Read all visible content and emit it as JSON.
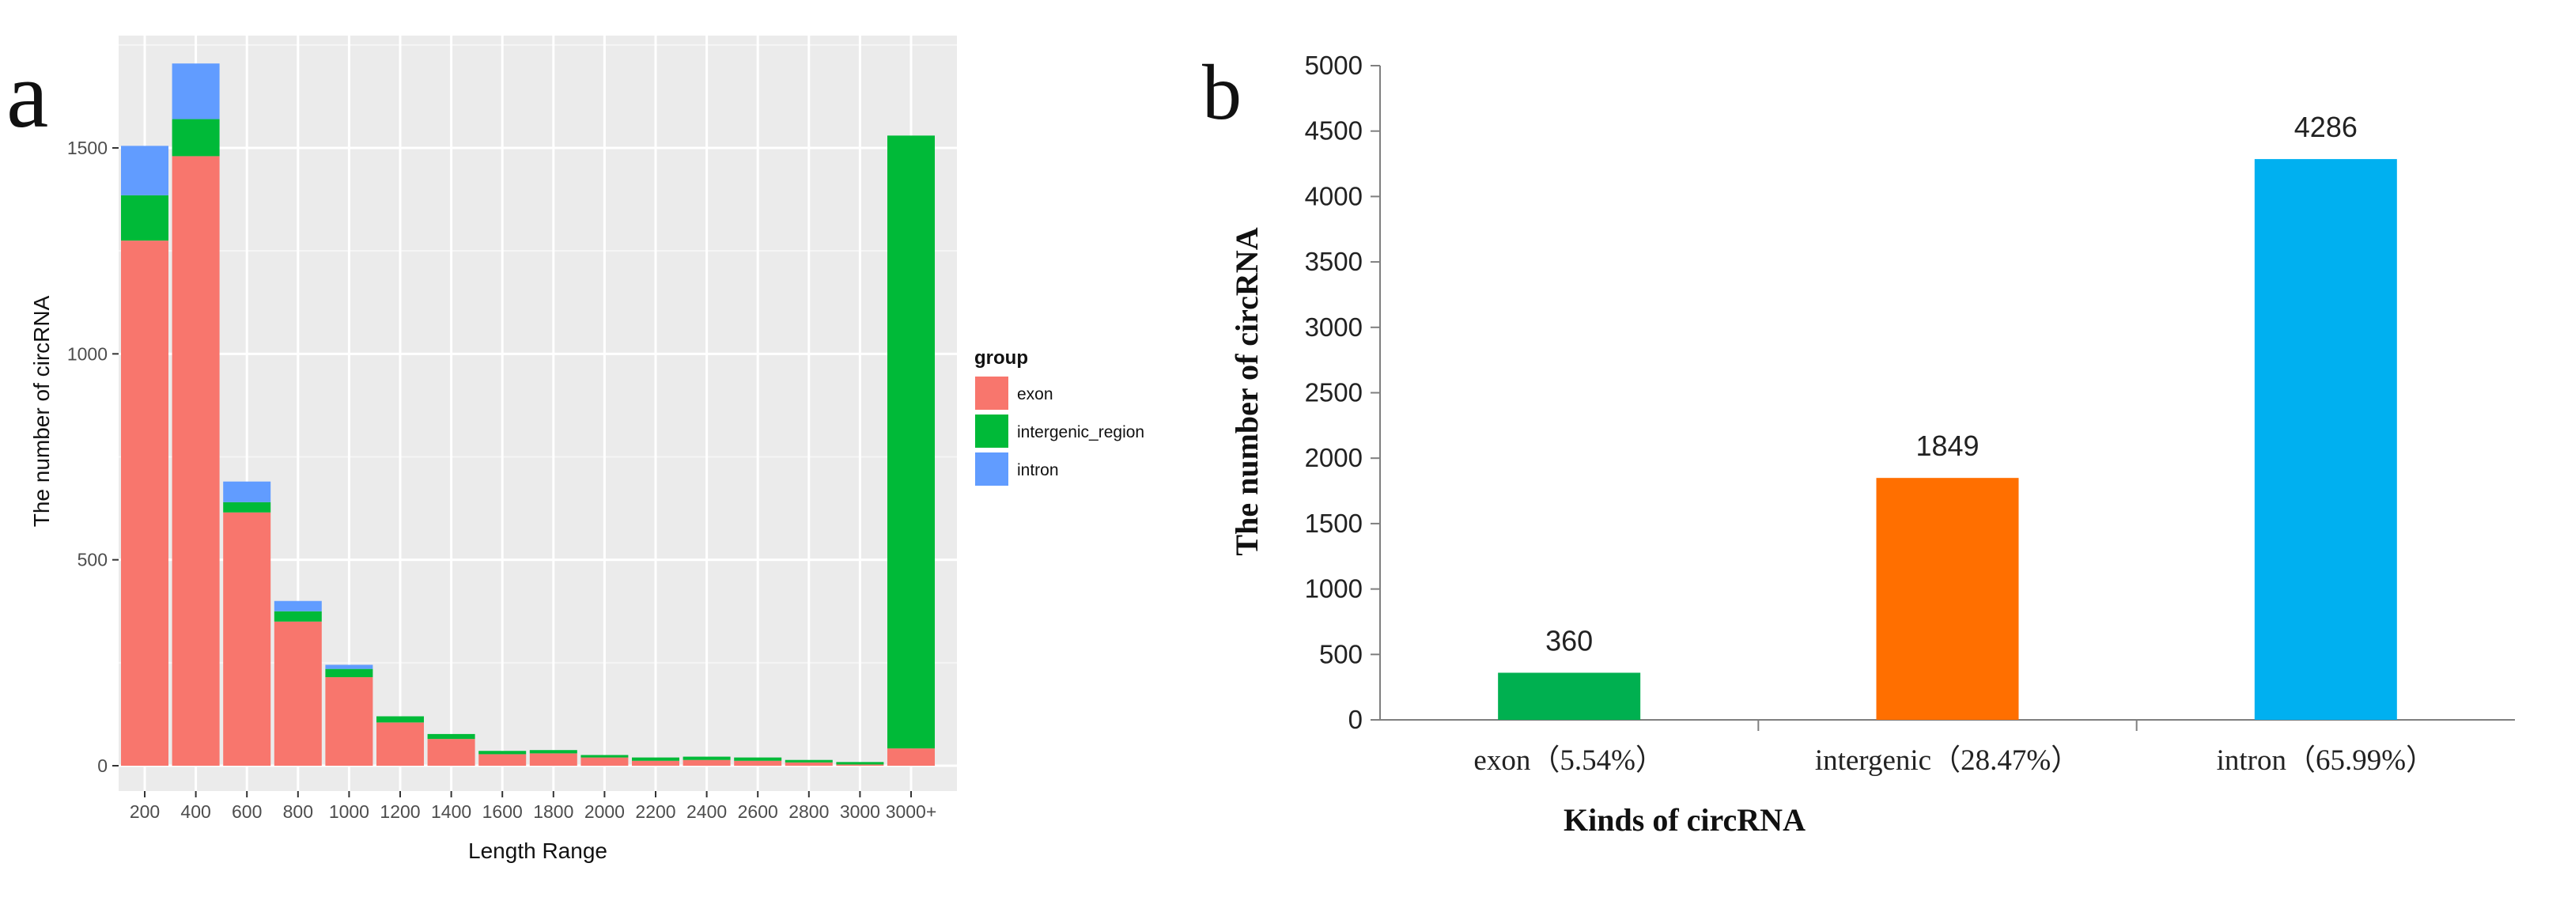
{
  "chart_data": [
    {
      "panel_label": "a",
      "type": "bar",
      "stacked": true,
      "xlabel": "Length Range",
      "ylabel": "The number of circRNA",
      "categories": [
        "200",
        "400",
        "600",
        "800",
        "1000",
        "1200",
        "1400",
        "1600",
        "1800",
        "2000",
        "2200",
        "2400",
        "2600",
        "2800",
        "3000",
        "3000+"
      ],
      "ylim": [
        0,
        1750
      ],
      "yticks": [
        0,
        500,
        1000,
        1500
      ],
      "series": [
        {
          "name": "exon",
          "color": "#f8766d",
          "values": [
            1275,
            1480,
            615,
            350,
            215,
            105,
            65,
            28,
            30,
            20,
            12,
            14,
            12,
            8,
            3,
            42
          ]
        },
        {
          "name": "intergenic_region",
          "color": "#00ba38",
          "values": [
            110,
            90,
            25,
            25,
            20,
            15,
            12,
            8,
            8,
            6,
            8,
            8,
            8,
            6,
            6,
            1488
          ]
        },
        {
          "name": "intron",
          "color": "#619cff",
          "values": [
            120,
            135,
            50,
            25,
            10,
            0,
            0,
            0,
            0,
            0,
            0,
            0,
            0,
            0,
            0,
            0
          ]
        }
      ],
      "legend_title": "group",
      "legend_placement": "right",
      "panel_background": "#ebebeb"
    },
    {
      "panel_label": "b",
      "type": "bar",
      "xlabel": "Kinds of circRNA",
      "ylabel": "The number of circRNA",
      "categories": [
        "exon（5.54%）",
        "intergenic（28.47%）",
        "intron（65.99%）"
      ],
      "values": [
        360,
        1849,
        4286
      ],
      "data_labels": [
        "360",
        "1849",
        "4286"
      ],
      "colors": [
        "#00b050",
        "#ff6f00",
        "#00b0f0"
      ],
      "ylim": [
        0,
        5000
      ],
      "yticks": [
        0,
        500,
        1000,
        1500,
        2000,
        2500,
        3000,
        3500,
        4000,
        4500,
        5000
      ]
    }
  ]
}
